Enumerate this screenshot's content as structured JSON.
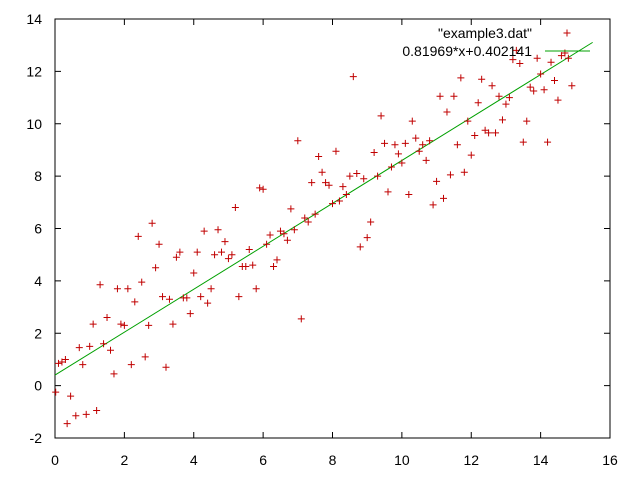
{
  "chart_data": {
    "type": "scatter",
    "title": "",
    "xlabel": "",
    "ylabel": "",
    "xlim": [
      0,
      16
    ],
    "ylim": [
      -2,
      14
    ],
    "x_ticks": [
      "0",
      "2",
      "4",
      "6",
      "8",
      "10",
      "12",
      "14",
      "16"
    ],
    "y_ticks": [
      "-2",
      "0",
      "2",
      "4",
      "6",
      "8",
      "10",
      "12",
      "14"
    ],
    "grid": false,
    "legend_position": "top-right",
    "series": [
      {
        "name": "\"example3.dat\"",
        "kind": "points",
        "marker": "plus",
        "color": "#c00000",
        "points": [
          [
            0.02,
            -0.25
          ],
          [
            0.1,
            0.85
          ],
          [
            0.2,
            0.9
          ],
          [
            0.3,
            1.0
          ],
          [
            0.35,
            -1.45
          ],
          [
            0.45,
            -0.4
          ],
          [
            0.6,
            -1.15
          ],
          [
            0.7,
            1.45
          ],
          [
            0.8,
            0.8
          ],
          [
            0.9,
            -1.1
          ],
          [
            1.0,
            1.5
          ],
          [
            1.1,
            2.35
          ],
          [
            1.2,
            -0.95
          ],
          [
            1.3,
            3.85
          ],
          [
            1.4,
            1.6
          ],
          [
            1.5,
            2.6
          ],
          [
            1.6,
            1.35
          ],
          [
            1.7,
            0.45
          ],
          [
            1.8,
            3.7
          ],
          [
            1.9,
            2.35
          ],
          [
            2.0,
            2.3
          ],
          [
            2.1,
            3.7
          ],
          [
            2.2,
            0.8
          ],
          [
            2.3,
            3.2
          ],
          [
            2.4,
            5.7
          ],
          [
            2.5,
            3.95
          ],
          [
            2.6,
            1.1
          ],
          [
            2.7,
            2.3
          ],
          [
            2.8,
            6.2
          ],
          [
            2.9,
            4.5
          ],
          [
            3.0,
            5.4
          ],
          [
            3.1,
            3.4
          ],
          [
            3.2,
            0.7
          ],
          [
            3.3,
            3.3
          ],
          [
            3.4,
            2.35
          ],
          [
            3.5,
            4.9
          ],
          [
            3.6,
            5.1
          ],
          [
            3.7,
            3.35
          ],
          [
            3.8,
            3.35
          ],
          [
            3.9,
            2.75
          ],
          [
            4.0,
            4.3
          ],
          [
            4.1,
            5.1
          ],
          [
            4.2,
            3.4
          ],
          [
            4.3,
            5.9
          ],
          [
            4.4,
            3.15
          ],
          [
            4.5,
            3.7
          ],
          [
            4.6,
            5.0
          ],
          [
            4.7,
            5.95
          ],
          [
            4.8,
            5.1
          ],
          [
            4.9,
            5.5
          ],
          [
            5.0,
            4.85
          ],
          [
            5.1,
            5.0
          ],
          [
            5.2,
            6.8
          ],
          [
            5.3,
            3.4
          ],
          [
            5.4,
            4.55
          ],
          [
            5.5,
            4.55
          ],
          [
            5.6,
            5.2
          ],
          [
            5.7,
            4.6
          ],
          [
            5.8,
            3.7
          ],
          [
            5.9,
            7.55
          ],
          [
            6.0,
            7.5
          ],
          [
            6.1,
            5.4
          ],
          [
            6.2,
            5.75
          ],
          [
            6.3,
            4.55
          ],
          [
            6.4,
            4.8
          ],
          [
            6.5,
            5.9
          ],
          [
            6.6,
            5.8
          ],
          [
            6.7,
            5.55
          ],
          [
            6.8,
            6.75
          ],
          [
            6.9,
            5.95
          ],
          [
            7.0,
            9.35
          ],
          [
            7.1,
            2.55
          ],
          [
            7.2,
            6.4
          ],
          [
            7.3,
            6.25
          ],
          [
            7.4,
            7.75
          ],
          [
            7.5,
            6.55
          ],
          [
            7.6,
            8.75
          ],
          [
            7.7,
            8.15
          ],
          [
            7.8,
            7.75
          ],
          [
            7.9,
            7.65
          ],
          [
            8.0,
            6.95
          ],
          [
            8.1,
            8.95
          ],
          [
            8.2,
            7.05
          ],
          [
            8.3,
            7.6
          ],
          [
            8.4,
            7.3
          ],
          [
            8.5,
            8.0
          ],
          [
            8.6,
            11.8
          ],
          [
            8.7,
            8.1
          ],
          [
            8.8,
            5.3
          ],
          [
            8.9,
            7.9
          ],
          [
            9.0,
            5.65
          ],
          [
            9.1,
            6.25
          ],
          [
            9.2,
            8.9
          ],
          [
            9.3,
            8.0
          ],
          [
            9.4,
            10.3
          ],
          [
            9.5,
            9.25
          ],
          [
            9.6,
            7.4
          ],
          [
            9.7,
            8.35
          ],
          [
            9.8,
            9.2
          ],
          [
            9.9,
            8.85
          ],
          [
            10.0,
            8.5
          ],
          [
            10.1,
            9.25
          ],
          [
            10.2,
            7.3
          ],
          [
            10.3,
            10.1
          ],
          [
            10.4,
            9.45
          ],
          [
            10.5,
            8.95
          ],
          [
            10.6,
            9.2
          ],
          [
            10.7,
            8.6
          ],
          [
            10.8,
            9.35
          ],
          [
            10.9,
            6.9
          ],
          [
            11.0,
            7.8
          ],
          [
            11.1,
            11.05
          ],
          [
            11.2,
            7.15
          ],
          [
            11.3,
            10.45
          ],
          [
            11.4,
            8.05
          ],
          [
            11.5,
            11.05
          ],
          [
            11.6,
            9.2
          ],
          [
            11.7,
            11.75
          ],
          [
            11.8,
            8.15
          ],
          [
            11.9,
            10.1
          ],
          [
            12.0,
            8.8
          ],
          [
            12.1,
            9.55
          ],
          [
            12.2,
            10.8
          ],
          [
            12.3,
            11.7
          ],
          [
            12.4,
            9.75
          ],
          [
            12.5,
            9.65
          ],
          [
            12.6,
            11.45
          ],
          [
            12.7,
            9.65
          ],
          [
            12.8,
            11.05
          ],
          [
            12.9,
            10.15
          ],
          [
            13.0,
            10.75
          ],
          [
            13.1,
            11.0
          ],
          [
            13.2,
            12.45
          ],
          [
            13.3,
            12.8
          ],
          [
            13.4,
            12.3
          ],
          [
            13.5,
            9.3
          ],
          [
            13.6,
            10.1
          ],
          [
            13.7,
            11.4
          ],
          [
            13.8,
            11.25
          ],
          [
            13.9,
            12.5
          ],
          [
            14.0,
            11.9
          ],
          [
            14.1,
            11.3
          ],
          [
            14.2,
            9.3
          ],
          [
            14.3,
            12.35
          ],
          [
            14.4,
            11.65
          ],
          [
            14.5,
            10.9
          ],
          [
            14.6,
            12.6
          ],
          [
            14.7,
            12.7
          ],
          [
            14.8,
            12.5
          ],
          [
            14.9,
            11.45
          ]
        ]
      },
      {
        "name": "0.81969*x+0.402141",
        "kind": "line",
        "color": "#00a000",
        "slope": 0.81969,
        "intercept": 0.402141,
        "x_range": [
          0,
          15.5
        ]
      }
    ]
  }
}
